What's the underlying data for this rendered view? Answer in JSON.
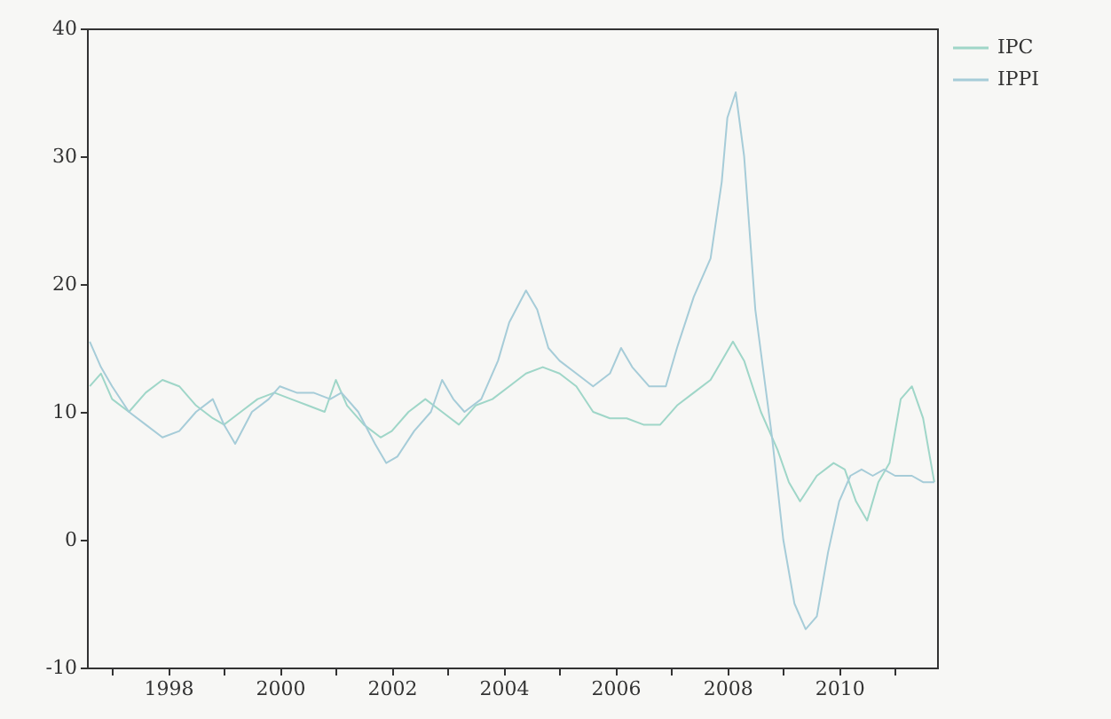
{
  "chart_data": {
    "type": "line",
    "xlim": [
      1996.55,
      2011.75
    ],
    "xticks": [
      {
        "value": 1997,
        "label": null
      },
      1998,
      {
        "value": 1999,
        "label": null
      },
      2000,
      {
        "value": 2001,
        "label": null
      },
      2002,
      {
        "value": 2003,
        "label": null
      },
      2004,
      {
        "value": 2005,
        "label": null
      },
      2006,
      {
        "value": 2007,
        "label": null
      },
      2008,
      {
        "value": 2009,
        "label": null
      },
      2010,
      {
        "value": 2011,
        "label": null
      }
    ],
    "ylim": [
      -10,
      40
    ],
    "yticks": [
      -10,
      0,
      10,
      20,
      30,
      40
    ],
    "grid": false,
    "legend": "right",
    "marker": "none",
    "line_style": "solid",
    "series": [
      {
        "name": "IPC",
        "color": "#9fd6c8",
        "x": [
          1996.6,
          1996.8,
          1997.0,
          1997.3,
          1997.6,
          1997.9,
          1998.2,
          1998.5,
          1998.8,
          1999.0,
          1999.3,
          1999.6,
          1999.9,
          2000.2,
          2000.5,
          2000.8,
          2001.0,
          2001.2,
          2001.5,
          2001.8,
          2002.0,
          2002.3,
          2002.6,
          2002.9,
          2003.2,
          2003.5,
          2003.8,
          2004.1,
          2004.4,
          2004.7,
          2005.0,
          2005.3,
          2005.6,
          2005.9,
          2006.2,
          2006.5,
          2006.8,
          2007.1,
          2007.4,
          2007.7,
          2007.9,
          2008.1,
          2008.3,
          2008.6,
          2008.9,
          2009.1,
          2009.3,
          2009.6,
          2009.9,
          2010.1,
          2010.3,
          2010.5,
          2010.7,
          2010.9,
          2011.1,
          2011.3,
          2011.5,
          2011.7
        ],
        "values": [
          12,
          13,
          11,
          10,
          11.5,
          12.5,
          12,
          10.5,
          9.5,
          9,
          10,
          11,
          11.5,
          11,
          10.5,
          10,
          12.5,
          10.5,
          9,
          8,
          8.5,
          10,
          11,
          10,
          9,
          10.5,
          11,
          12,
          13,
          13.5,
          13,
          12,
          10,
          9.5,
          9.5,
          9,
          9,
          10.5,
          11.5,
          12.5,
          14,
          15.5,
          14,
          10,
          7,
          4.5,
          3,
          5,
          6,
          5.5,
          3,
          1.5,
          4.5,
          6,
          11,
          12,
          9.5,
          4.5
        ]
      },
      {
        "name": "IPPI",
        "color": "#a6ccd8",
        "x": [
          1996.6,
          1996.8,
          1997.0,
          1997.3,
          1997.6,
          1997.9,
          1998.2,
          1998.5,
          1998.8,
          1999.0,
          1999.2,
          1999.5,
          1999.8,
          2000.0,
          2000.3,
          2000.6,
          2000.9,
          2001.1,
          2001.4,
          2001.7,
          2001.9,
          2002.1,
          2002.4,
          2002.7,
          2002.9,
          2003.1,
          2003.3,
          2003.6,
          2003.9,
          2004.1,
          2004.4,
          2004.6,
          2004.8,
          2005.0,
          2005.3,
          2005.6,
          2005.9,
          2006.1,
          2006.3,
          2006.6,
          2006.9,
          2007.1,
          2007.4,
          2007.7,
          2007.9,
          2008.0,
          2008.15,
          2008.3,
          2008.5,
          2008.8,
          2009.0,
          2009.2,
          2009.4,
          2009.6,
          2009.8,
          2010.0,
          2010.2,
          2010.4,
          2010.6,
          2010.8,
          2011.0,
          2011.3,
          2011.5,
          2011.7
        ],
        "values": [
          15.5,
          13.5,
          12,
          10,
          9,
          8,
          8.5,
          10,
          11,
          9,
          7.5,
          10,
          11,
          12,
          11.5,
          11.5,
          11,
          11.5,
          10,
          7.5,
          6,
          6.5,
          8.5,
          10,
          12.5,
          11,
          10,
          11,
          14,
          17,
          19.5,
          18,
          15,
          14,
          13,
          12,
          13,
          15,
          13.5,
          12,
          12,
          15,
          19,
          22,
          28,
          33,
          35,
          30,
          18,
          8,
          0,
          -5,
          -7,
          -6,
          -1,
          3,
          5,
          5.5,
          5,
          5.5,
          5,
          5,
          4.5,
          4.5
        ]
      }
    ]
  }
}
